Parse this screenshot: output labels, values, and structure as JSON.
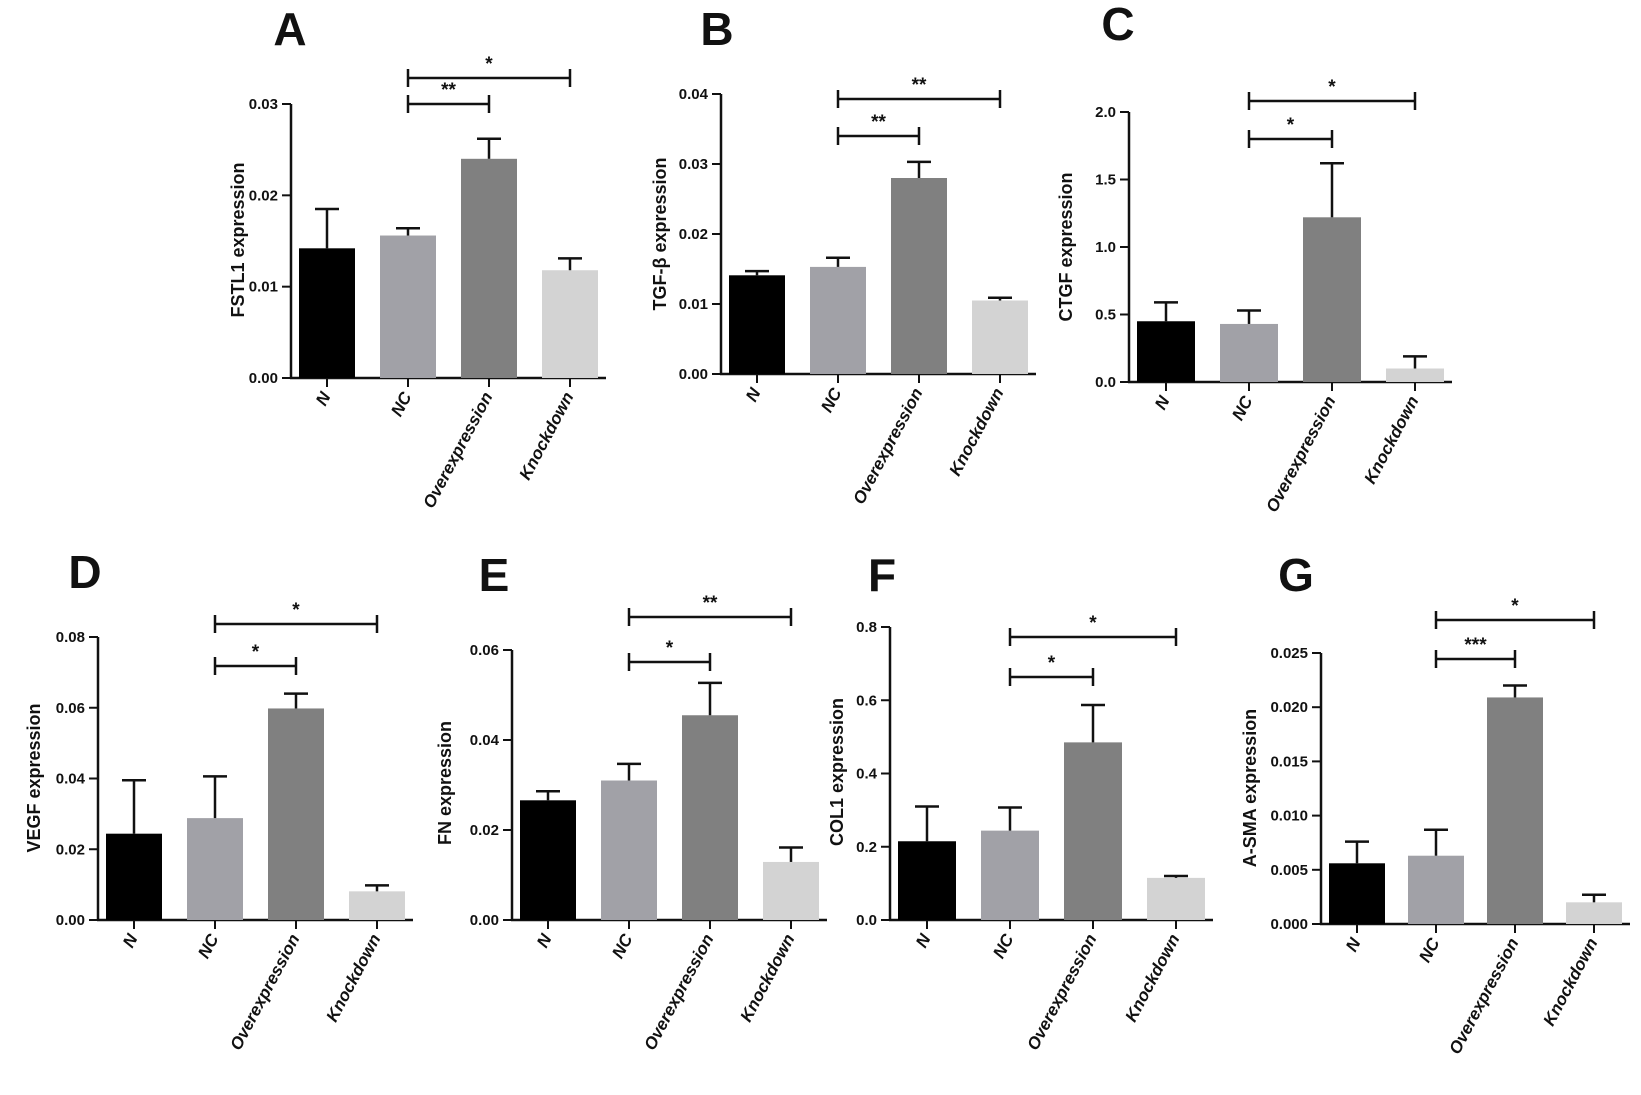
{
  "categories": [
    "N",
    "NC",
    "Overexpression",
    "Knockdown"
  ],
  "colors": {
    "N": "#000000",
    "NC": "#a1a1a7",
    "Overexpression": "#808080",
    "Knockdown": "#d3d3d3",
    "axis": "#111111"
  },
  "chart_data": [
    {
      "panel": "A",
      "type": "bar",
      "ylabel": "FSTL1 expression",
      "categories": [
        "N",
        "NC",
        "Overexpression",
        "Knockdown"
      ],
      "values": [
        0.0142,
        0.0156,
        0.024,
        0.0118
      ],
      "errors": [
        0.0043,
        0.0008,
        0.0022,
        0.0013
      ],
      "ylim": [
        0,
        0.03
      ],
      "yticks": [
        "0.00",
        "0.01",
        "0.02",
        "0.03"
      ],
      "significance": [
        {
          "from": "NC",
          "to": "Overexpression",
          "label": "**"
        },
        {
          "from": "NC",
          "to": "Knockdown",
          "label": "*"
        }
      ]
    },
    {
      "panel": "B",
      "type": "bar",
      "ylabel": "TGF-β expression",
      "categories": [
        "N",
        "NC",
        "Overexpression",
        "Knockdown"
      ],
      "values": [
        0.0141,
        0.0153,
        0.028,
        0.0105
      ],
      "errors": [
        0.0006,
        0.0013,
        0.0023,
        0.0004
      ],
      "ylim": [
        0,
        0.04
      ],
      "yticks": [
        "0.00",
        "0.01",
        "0.02",
        "0.03",
        "0.04"
      ],
      "significance": [
        {
          "from": "NC",
          "to": "Overexpression",
          "label": "**"
        },
        {
          "from": "NC",
          "to": "Knockdown",
          "label": "**"
        }
      ]
    },
    {
      "panel": "C",
      "type": "bar",
      "ylabel": "CTGF expression",
      "categories": [
        "N",
        "NC",
        "Overexpression",
        "Knockdown"
      ],
      "values": [
        0.45,
        0.43,
        1.22,
        0.1
      ],
      "errors": [
        0.14,
        0.1,
        0.4,
        0.09
      ],
      "ylim": [
        0,
        2.0
      ],
      "yticks": [
        "0.0",
        "0.5",
        "1.0",
        "1.5",
        "2.0"
      ],
      "significance": [
        {
          "from": "NC",
          "to": "Overexpression",
          "label": "*"
        },
        {
          "from": "NC",
          "to": "Knockdown",
          "label": "*"
        }
      ]
    },
    {
      "panel": "D",
      "type": "bar",
      "ylabel": "VEGF expression",
      "categories": [
        "N",
        "NC",
        "Overexpression",
        "Knockdown"
      ],
      "values": [
        0.0244,
        0.0288,
        0.0598,
        0.0081
      ],
      "errors": [
        0.0151,
        0.0118,
        0.0042,
        0.0017
      ],
      "ylim": [
        0,
        0.08
      ],
      "yticks": [
        "0.00",
        "0.02",
        "0.04",
        "0.06",
        "0.08"
      ],
      "significance": [
        {
          "from": "NC",
          "to": "Overexpression",
          "label": "*"
        },
        {
          "from": "NC",
          "to": "Knockdown",
          "label": "*"
        }
      ]
    },
    {
      "panel": "E",
      "type": "bar",
      "ylabel": "FN expression",
      "categories": [
        "N",
        "NC",
        "Overexpression",
        "Knockdown"
      ],
      "values": [
        0.0266,
        0.031,
        0.0455,
        0.0129
      ],
      "errors": [
        0.002,
        0.0037,
        0.0072,
        0.0032
      ],
      "ylim": [
        0,
        0.06
      ],
      "yticks": [
        "0.00",
        "0.02",
        "0.04",
        "0.06"
      ],
      "significance": [
        {
          "from": "NC",
          "to": "Overexpression",
          "label": "*"
        },
        {
          "from": "NC",
          "to": "Knockdown",
          "label": "**"
        }
      ]
    },
    {
      "panel": "F",
      "type": "bar",
      "ylabel": "COL1 expression",
      "categories": [
        "N",
        "NC",
        "Overexpression",
        "Knockdown"
      ],
      "values": [
        0.215,
        0.244,
        0.485,
        0.115
      ],
      "errors": [
        0.095,
        0.063,
        0.102,
        0.005
      ],
      "ylim": [
        0,
        0.8
      ],
      "yticks": [
        "0.0",
        "0.2",
        "0.4",
        "0.6",
        "0.8"
      ],
      "significance": [
        {
          "from": "NC",
          "to": "Overexpression",
          "label": "*"
        },
        {
          "from": "NC",
          "to": "Knockdown",
          "label": "*"
        }
      ]
    },
    {
      "panel": "G",
      "type": "bar",
      "ylabel": "A-SMA expression",
      "categories": [
        "N",
        "NC",
        "Overexpression",
        "Knockdown"
      ],
      "values": [
        0.0056,
        0.0063,
        0.0209,
        0.002
      ],
      "errors": [
        0.002,
        0.0024,
        0.0011,
        0.0007
      ],
      "ylim": [
        0,
        0.025
      ],
      "yticks": [
        "0.000",
        "0.005",
        "0.010",
        "0.015",
        "0.020",
        "0.025"
      ],
      "significance": [
        {
          "from": "NC",
          "to": "Overexpression",
          "label": "***"
        },
        {
          "from": "NC",
          "to": "Knockdown",
          "label": "*"
        }
      ]
    }
  ]
}
